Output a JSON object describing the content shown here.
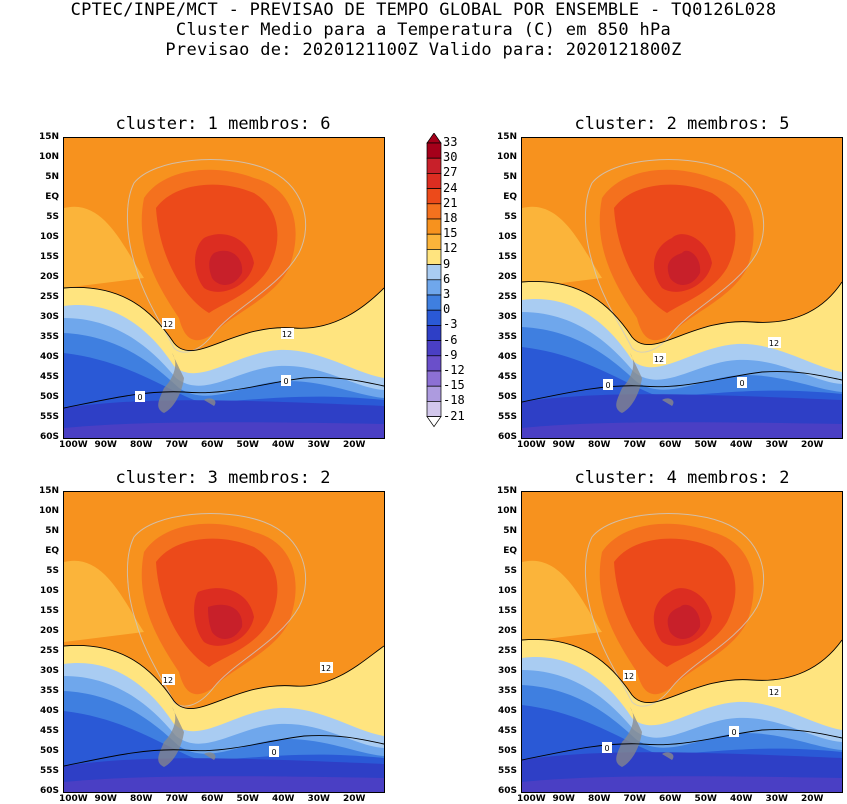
{
  "title": {
    "line1": "CPTEC/INPE/MCT - PREVISAO DE TEMPO GLOBAL POR ENSEMBLE - TQ0126L028",
    "line2": "Cluster Medio para a Temperatura (C) em 850 hPa",
    "line3": "Previsao de: 2020121100Z   Valido para: 2020121800Z"
  },
  "panels": [
    {
      "title": "cluster: 1   membros: 6"
    },
    {
      "title": "cluster: 2   membros: 5"
    },
    {
      "title": "cluster: 3   membros: 2"
    },
    {
      "title": "cluster: 4   membros: 2"
    }
  ],
  "lat_labels": [
    "15N",
    "10N",
    "5N",
    "EQ",
    "5S",
    "10S",
    "15S",
    "20S",
    "25S",
    "30S",
    "35S",
    "40S",
    "45S",
    "50S",
    "55S",
    "60S"
  ],
  "lon_labels": [
    "100W",
    "90W",
    "80W",
    "70W",
    "60W",
    "50W",
    "40W",
    "30W",
    "20W"
  ],
  "contour_labels": {
    "c12": "12",
    "c0": "0"
  },
  "colorbar": {
    "labels": [
      "33",
      "30",
      "27",
      "24",
      "21",
      "18",
      "15",
      "12",
      "9",
      "6",
      "3",
      "0",
      "-3",
      "-6",
      "-9",
      "-12",
      "-15",
      "-18",
      "-21"
    ],
    "colors": [
      "#a5001a",
      "#c8202a",
      "#dc2d21",
      "#ec4a1a",
      "#f4711e",
      "#f7921e",
      "#fbb43a",
      "#ffe47f",
      "#a9ccf2",
      "#6fa7ec",
      "#3f7fe0",
      "#2a59d6",
      "#2e3fc6",
      "#4a3fc4",
      "#6a4fca",
      "#8c70d4",
      "#ad9bdf",
      "#d2c7ec"
    ]
  }
}
